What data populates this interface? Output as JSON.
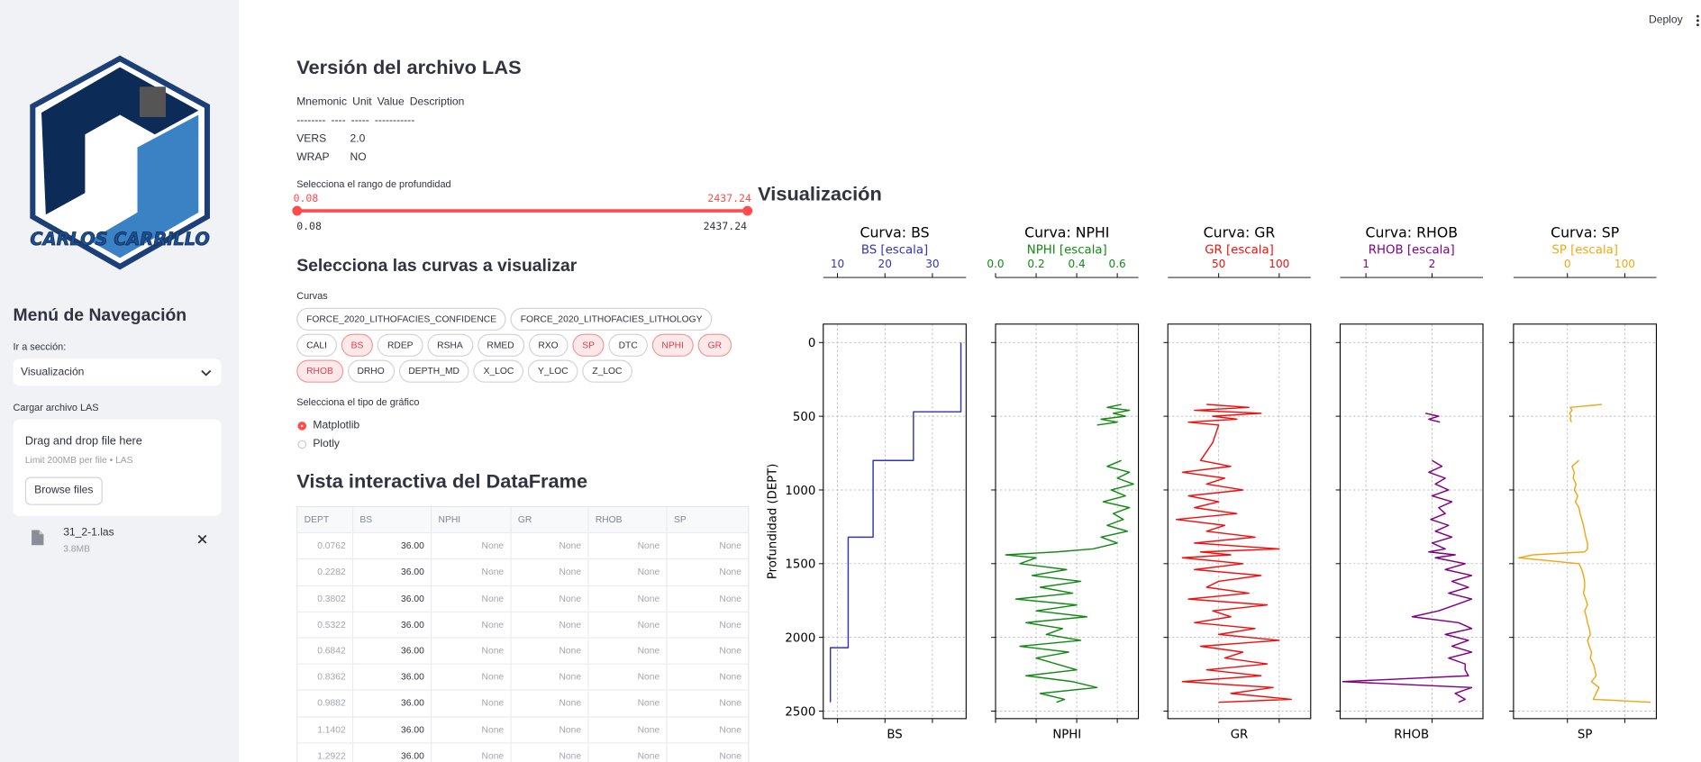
{
  "header": {
    "deploy": "Deploy"
  },
  "sidebar": {
    "logo_text": "CARLOS CARRILLO",
    "nav_title": "Menú de Navegación",
    "section_label": "Ir a sección:",
    "section_value": "Visualización",
    "upload_label": "Cargar archivo LAS",
    "dropzone_title": "Drag and drop file here",
    "dropzone_limit": "Limit 200MB per file • LAS",
    "browse_button": "Browse files",
    "file_name": "31_2-1.las",
    "file_size": "3.8MB"
  },
  "main": {
    "version_title": "Versión del archivo LAS",
    "version_table": {
      "header": [
        "Mnemonic",
        "Unit",
        "Value",
        "Description"
      ],
      "separator": [
        "--------",
        "----",
        "-----",
        "-----------"
      ],
      "rows": [
        [
          "VERS",
          "2.0"
        ],
        [
          "WRAP",
          "NO"
        ]
      ]
    },
    "slider": {
      "label": "Selecciona el rango de profundidad",
      "selected": [
        "0.08",
        "2437.24"
      ],
      "range": [
        "0.08",
        "2437.24"
      ]
    },
    "curves_title": "Selecciona las curvas a visualizar",
    "curves_label": "Curvas",
    "curves": [
      {
        "name": "FORCE_2020_LITHOFACIES_CONFIDENCE",
        "selected": false
      },
      {
        "name": "FORCE_2020_LITHOFACIES_LITHOLOGY",
        "selected": false
      },
      {
        "name": "CALI",
        "selected": false
      },
      {
        "name": "BS",
        "selected": true
      },
      {
        "name": "RDEP",
        "selected": false
      },
      {
        "name": "RSHA",
        "selected": false
      },
      {
        "name": "RMED",
        "selected": false
      },
      {
        "name": "RXO",
        "selected": false
      },
      {
        "name": "SP",
        "selected": true
      },
      {
        "name": "DTC",
        "selected": false
      },
      {
        "name": "NPHI",
        "selected": true
      },
      {
        "name": "GR",
        "selected": true
      },
      {
        "name": "RHOB",
        "selected": true
      },
      {
        "name": "DRHO",
        "selected": false
      },
      {
        "name": "DEPTH_MD",
        "selected": false
      },
      {
        "name": "X_LOC",
        "selected": false
      },
      {
        "name": "Y_LOC",
        "selected": false
      },
      {
        "name": "Z_LOC",
        "selected": false
      }
    ],
    "plot_type_label": "Selecciona el tipo de gráfico",
    "plot_types": [
      {
        "name": "Matplotlib",
        "selected": true
      },
      {
        "name": "Plotly",
        "selected": false
      }
    ],
    "dataframe_title": "Vista interactiva del DataFrame",
    "dataframe": {
      "columns": [
        "DEPT",
        "BS",
        "NPHI",
        "GR",
        "RHOB",
        "SP"
      ],
      "rows": [
        [
          "0.0762",
          "36.00",
          "None",
          "None",
          "None",
          "None"
        ],
        [
          "0.2282",
          "36.00",
          "None",
          "None",
          "None",
          "None"
        ],
        [
          "0.3802",
          "36.00",
          "None",
          "None",
          "None",
          "None"
        ],
        [
          "0.5322",
          "36.00",
          "None",
          "None",
          "None",
          "None"
        ],
        [
          "0.6842",
          "36.00",
          "None",
          "None",
          "None",
          "None"
        ],
        [
          "0.8362",
          "36.00",
          "None",
          "None",
          "None",
          "None"
        ],
        [
          "0.9882",
          "36.00",
          "None",
          "None",
          "None",
          "None"
        ],
        [
          "1.1402",
          "36.00",
          "None",
          "None",
          "None",
          "None"
        ],
        [
          "1.2922",
          "36.00",
          "None",
          "None",
          "None",
          "None"
        ]
      ]
    },
    "viz_title": "Visualización"
  },
  "chart_data": [
    {
      "type": "line",
      "title": "Curva: BS",
      "top_xlabel": "BS [escala]",
      "xlabel": "BS",
      "ylabel": "Profundidad (DEPT)",
      "color": "#3333b5",
      "grid": true,
      "y_inverted": true,
      "xlim": [
        7,
        37.1
      ],
      "xticks": [
        10,
        20,
        30
      ],
      "ylim": [
        -125,
        2551
      ],
      "yticks": [
        0,
        500,
        1000,
        1500,
        2000,
        2500
      ],
      "y": [
        0,
        470,
        470,
        800,
        800,
        1320,
        1320,
        2070,
        2070,
        2440
      ],
      "values": [
        36,
        36,
        26,
        26,
        17.5,
        17.5,
        12.25,
        12.25,
        8.5,
        8.5
      ]
    },
    {
      "type": "line",
      "title": "Curva: NPHI",
      "top_xlabel": "NPHI [escala]",
      "xlabel": "NPHI",
      "color": "#138a13",
      "grid": true,
      "y_inverted": true,
      "xlim": [
        0,
        0.704
      ],
      "xticks": [
        {
          "value": 0,
          "label": "0.0"
        },
        0.2,
        0.4,
        0.6
      ],
      "ylim": [
        -125,
        2551
      ],
      "yticks": [
        0,
        500,
        1000,
        1500,
        2000,
        2500
      ],
      "y": [
        420,
        440,
        460,
        480,
        500,
        520,
        540,
        560,
        680,
        800,
        840,
        880,
        920,
        960,
        1000,
        1040,
        1080,
        1120,
        1160,
        1200,
        1240,
        1280,
        1320,
        1360,
        1400,
        1420,
        1440,
        1460,
        1500,
        1540,
        1580,
        1620,
        1660,
        1700,
        1740,
        1780,
        1820,
        1860,
        1900,
        1940,
        1980,
        2020,
        2060,
        2100,
        2140,
        2180,
        2220,
        2260,
        2300,
        2340,
        2380,
        2420,
        2440
      ],
      "values": [
        0.62,
        0.55,
        0.66,
        0.58,
        0.64,
        0.52,
        0.6,
        0.5,
        null,
        0.62,
        0.55,
        0.66,
        0.6,
        0.68,
        0.57,
        0.64,
        0.53,
        0.66,
        0.58,
        0.63,
        0.55,
        0.65,
        0.52,
        0.6,
        0.48,
        0.3,
        0.05,
        0.2,
        0.12,
        0.35,
        0.18,
        0.42,
        0.22,
        0.38,
        0.1,
        0.4,
        0.2,
        0.45,
        0.15,
        0.33,
        0.25,
        0.42,
        0.12,
        0.36,
        0.2,
        0.3,
        0.4,
        0.15,
        0.38,
        0.5,
        0.22,
        0.34,
        0.3
      ]
    },
    {
      "type": "line",
      "title": "Curva: GR",
      "top_xlabel": "GR [escala]",
      "xlabel": "GR",
      "color": "#f01010",
      "grid": true,
      "y_inverted": true,
      "xlim": [
        8,
        126
      ],
      "xticks": [
        50,
        100
      ],
      "ylim": [
        -125,
        2551
      ],
      "yticks": [
        0,
        500,
        1000,
        1500,
        2000,
        2500
      ],
      "y": [
        420,
        440,
        460,
        480,
        500,
        520,
        540,
        560,
        680,
        800,
        840,
        880,
        920,
        960,
        1000,
        1040,
        1080,
        1120,
        1160,
        1200,
        1240,
        1280,
        1320,
        1360,
        1400,
        1420,
        1440,
        1460,
        1500,
        1540,
        1580,
        1620,
        1660,
        1700,
        1740,
        1780,
        1820,
        1860,
        1900,
        1940,
        1980,
        2020,
        2060,
        2100,
        2140,
        2180,
        2220,
        2260,
        2300,
        2340,
        2380,
        2420,
        2440
      ],
      "values": [
        40,
        75,
        30,
        85,
        45,
        65,
        25,
        50,
        45,
        35,
        60,
        20,
        55,
        40,
        70,
        25,
        50,
        30,
        65,
        15,
        55,
        40,
        80,
        30,
        100,
        35,
        60,
        20,
        70,
        30,
        85,
        50,
        40,
        75,
        25,
        90,
        45,
        60,
        30,
        80,
        50,
        100,
        35,
        70,
        55,
        90,
        40,
        85,
        20,
        95,
        60,
        110,
        50
      ]
    },
    {
      "type": "line",
      "title": "Curva: RHOB",
      "top_xlabel": "RHOB [escala]",
      "xlabel": "RHOB",
      "color": "#800080",
      "grid": true,
      "y_inverted": true,
      "xlim": [
        0.61,
        2.77
      ],
      "xticks": [
        1,
        2
      ],
      "ylim": [
        -125,
        2551
      ],
      "yticks": [
        0,
        500,
        1000,
        1500,
        2000,
        2500
      ],
      "y": [
        420,
        440,
        460,
        480,
        500,
        520,
        540,
        560,
        680,
        800,
        840,
        880,
        920,
        960,
        1000,
        1040,
        1080,
        1120,
        1160,
        1200,
        1240,
        1280,
        1320,
        1360,
        1400,
        1420,
        1440,
        1460,
        1500,
        1540,
        1580,
        1620,
        1660,
        1700,
        1740,
        1780,
        1820,
        1860,
        1900,
        1940,
        1980,
        2020,
        2060,
        2100,
        2140,
        2180,
        2220,
        2260,
        2300,
        2340,
        2380,
        2420,
        2440
      ],
      "values": [
        null,
        null,
        null,
        1.9,
        2.1,
        1.95,
        2.12,
        null,
        null,
        2.0,
        2.15,
        1.95,
        2.2,
        2.05,
        2.25,
        2.0,
        2.3,
        2.1,
        2.2,
        1.98,
        2.25,
        2.05,
        2.3,
        2.0,
        2.2,
        1.95,
        2.35,
        2.05,
        2.5,
        2.2,
        2.6,
        2.3,
        2.55,
        2.25,
        2.6,
        2.35,
        2.1,
        1.7,
        2.4,
        2.6,
        2.2,
        2.55,
        2.3,
        2.6,
        2.25,
        2.5,
        2.5,
        2.55,
        0.65,
        2.6,
        2.35,
        2.5,
        2.4
      ]
    },
    {
      "type": "line",
      "title": "Curva: SP",
      "top_xlabel": "SP [escala]",
      "xlabel": "SP",
      "color": "#f0a818",
      "grid": true,
      "y_inverted": true,
      "xlim": [
        -94,
        155
      ],
      "xticks": [
        0,
        100
      ],
      "ylim": [
        -125,
        2551
      ],
      "yticks": [
        0,
        500,
        1000,
        1500,
        2000,
        2500
      ],
      "y": [
        420,
        440,
        460,
        480,
        500,
        520,
        540,
        560,
        680,
        800,
        840,
        880,
        920,
        960,
        1000,
        1040,
        1080,
        1120,
        1160,
        1200,
        1240,
        1280,
        1320,
        1360,
        1400,
        1420,
        1440,
        1460,
        1500,
        1540,
        1580,
        1620,
        1660,
        1700,
        1740,
        1780,
        1820,
        1860,
        1900,
        1940,
        1980,
        2020,
        2060,
        2100,
        2140,
        2180,
        2220,
        2260,
        2300,
        2340,
        2380,
        2420,
        2440
      ],
      "values": [
        60,
        5,
        8,
        4,
        6,
        5,
        7,
        null,
        null,
        20,
        8,
        12,
        10,
        15,
        12,
        18,
        14,
        20,
        22,
        25,
        28,
        30,
        32,
        35,
        35,
        30,
        -60,
        -85,
        20,
        25,
        28,
        30,
        30,
        28,
        32,
        35,
        30,
        33,
        35,
        38,
        40,
        35,
        38,
        42,
        40,
        45,
        48,
        50,
        42,
        55,
        50,
        45,
        145
      ]
    }
  ]
}
